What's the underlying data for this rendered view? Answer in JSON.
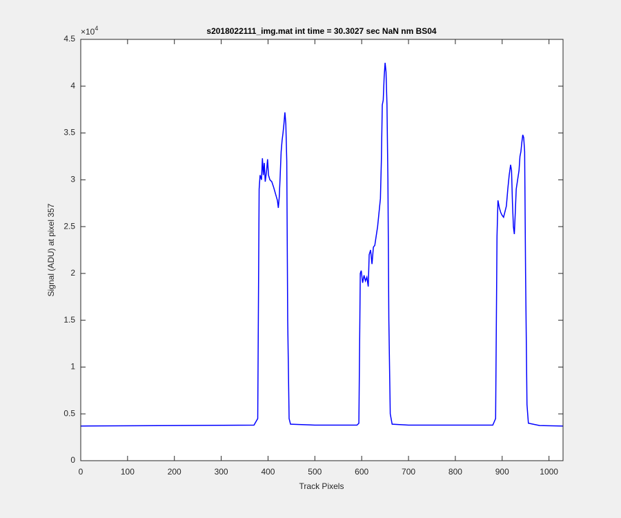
{
  "chart_data": {
    "type": "line",
    "title": "s2018022111_img.mat int time = 30.3027 sec  NaN nm BS04",
    "x_label": "Track Pixels",
    "y_label": "Signal (ADU) at pixel 357",
    "y_multiplier": "×10",
    "y_multiplier_power": "4",
    "grid": false,
    "xlim": [
      0,
      1030
    ],
    "ylim": [
      0,
      4.5
    ],
    "xticks": [
      0,
      100,
      200,
      300,
      400,
      500,
      600,
      700,
      800,
      900,
      1000
    ],
    "yticks": [
      0,
      0.5,
      1,
      1.5,
      2,
      2.5,
      3,
      3.5,
      4,
      4.5
    ],
    "x": [
      0,
      370,
      378,
      381,
      383,
      386,
      388,
      390,
      392,
      394,
      397,
      399,
      401,
      404,
      408,
      412,
      416,
      420,
      422,
      424,
      426,
      428,
      430,
      432,
      434,
      436,
      438,
      440,
      442,
      445,
      448,
      500,
      590,
      594,
      597,
      599,
      602,
      605,
      608,
      611,
      614,
      616,
      619,
      622,
      625,
      628,
      631,
      634,
      637,
      640,
      642,
      644,
      646,
      648,
      650,
      652,
      654,
      656,
      658,
      661,
      665,
      700,
      880,
      886,
      889,
      891,
      894,
      897,
      900,
      903,
      906,
      909,
      912,
      915,
      918,
      920,
      922,
      924,
      926,
      928,
      930,
      933,
      936,
      938,
      940,
      942,
      944,
      946,
      948,
      950,
      953,
      956,
      980,
      1030
    ],
    "series": [
      {
        "name": "signal",
        "color": "#0000ff",
        "values": [
          0.37,
          0.38,
          0.45,
          2.9,
          3.05,
          3.0,
          3.23,
          3.05,
          3.18,
          2.98,
          3.1,
          3.22,
          3.05,
          3.0,
          2.98,
          2.92,
          2.85,
          2.78,
          2.7,
          2.82,
          3.05,
          3.3,
          3.42,
          3.5,
          3.6,
          3.72,
          3.6,
          3.2,
          1.5,
          0.45,
          0.39,
          0.38,
          0.38,
          0.4,
          2.0,
          2.03,
          1.9,
          1.98,
          1.92,
          1.96,
          1.86,
          2.2,
          2.25,
          2.1,
          2.28,
          2.3,
          2.4,
          2.5,
          2.65,
          2.8,
          3.2,
          3.8,
          3.85,
          4.1,
          4.25,
          4.15,
          3.8,
          3.0,
          1.5,
          0.5,
          0.39,
          0.38,
          0.38,
          0.45,
          2.4,
          2.78,
          2.7,
          2.65,
          2.62,
          2.6,
          2.66,
          2.72,
          2.9,
          3.05,
          3.16,
          3.1,
          2.75,
          2.5,
          2.42,
          2.65,
          2.9,
          3.0,
          3.1,
          3.25,
          3.3,
          3.4,
          3.48,
          3.45,
          3.3,
          2.0,
          0.6,
          0.4,
          0.375,
          0.37
        ]
      }
    ]
  }
}
